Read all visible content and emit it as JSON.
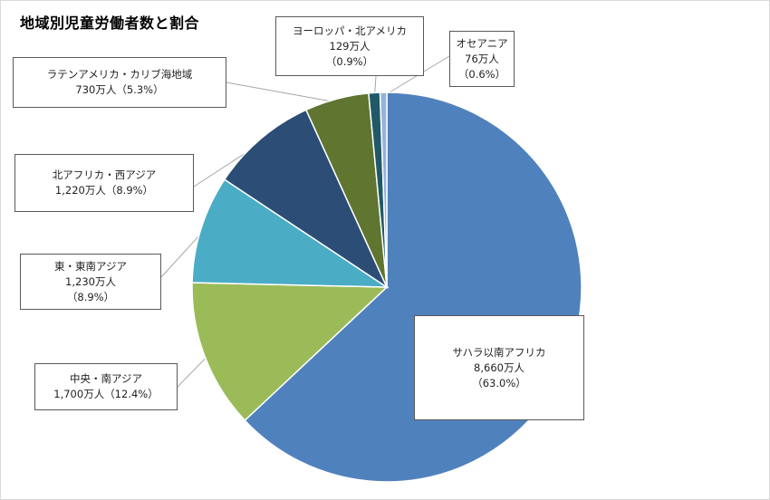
{
  "title": "地域別児童労働者数と割合",
  "chart_data": {
    "type": "pie",
    "title": "地域別児童労働者数と割合",
    "unit": "万人",
    "slices": [
      {
        "name": "サハラ以南アフリカ",
        "value": 8660,
        "value_label": "8,660万人",
        "percent": "（63.0%）",
        "color": "#4f81bd"
      },
      {
        "name": "中央・南アジア",
        "value": 1700,
        "value_label": "1,700万人",
        "percent": "（12.4%）",
        "color": "#9bbb59"
      },
      {
        "name": "東・東南アジア",
        "value": 1230,
        "value_label": "1,230万人",
        "percent": "（8.9%）",
        "color": "#4bacc6"
      },
      {
        "name": "北アフリカ・西アジア",
        "value": 1220,
        "value_label": "1,220万人",
        "percent": "（8.9%）",
        "color": "#2c4d75"
      },
      {
        "name": "ラテンアメリカ・カリブ海地域",
        "value": 730,
        "value_label": "730万人",
        "percent": "（5.3%）",
        "color": "#5f7530"
      },
      {
        "name": "ヨーロッパ・北アメリカ",
        "value": 129,
        "value_label": "129万人",
        "percent": "（0.9%）",
        "color": "#215968"
      },
      {
        "name": "オセアニア",
        "value": 76,
        "value_label": "76万人",
        "percent": "（0.6%）",
        "color": "#95b3d7"
      }
    ]
  }
}
